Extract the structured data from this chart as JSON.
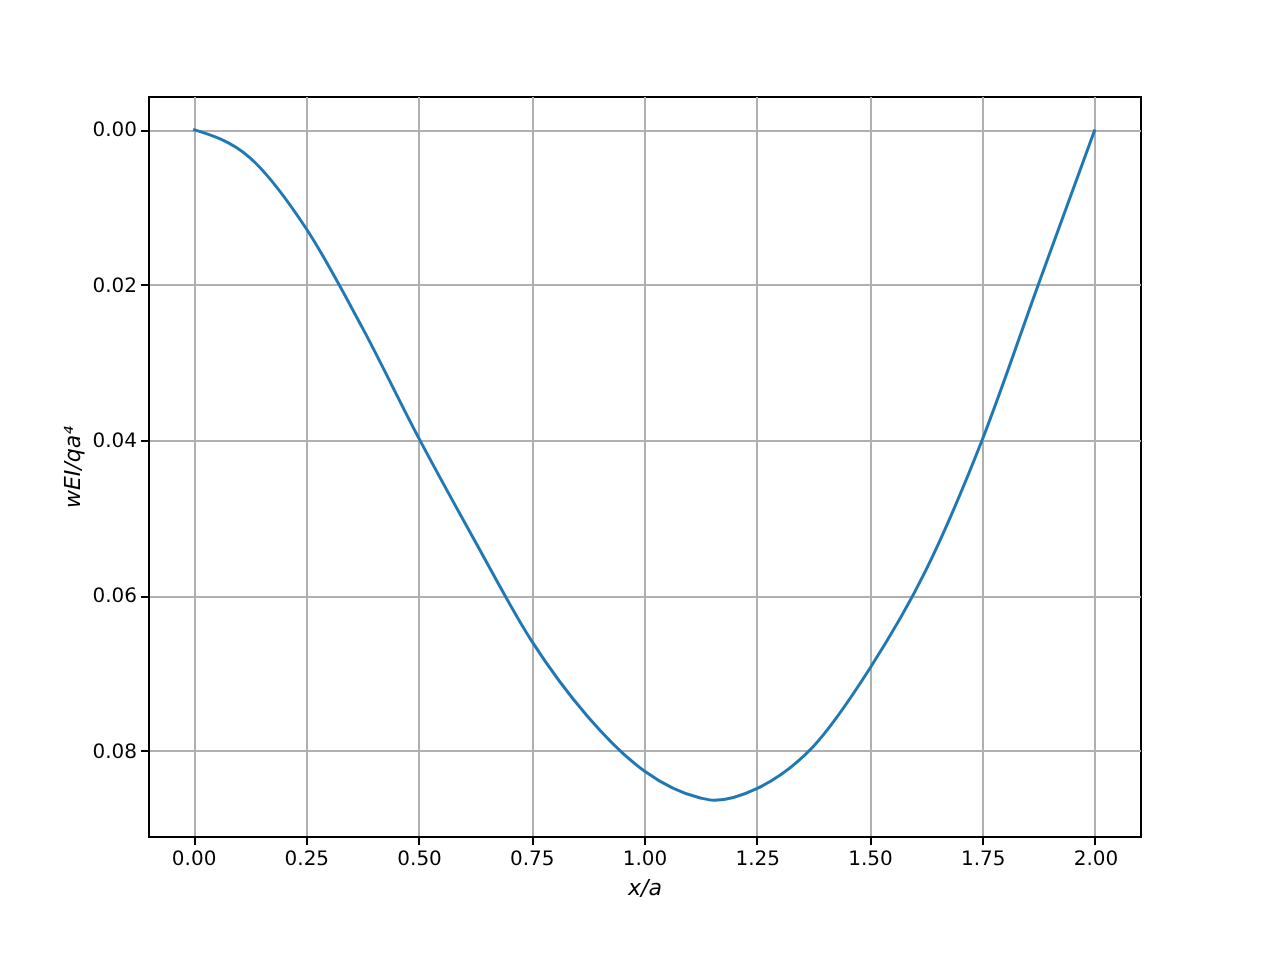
{
  "chart_data": {
    "type": "line",
    "xlabel": "x/a",
    "ylabel": "wEI/qa⁴",
    "x": [
      0,
      0.125,
      0.25,
      0.375,
      0.5,
      0.625,
      0.75,
      0.875,
      1.0,
      1.125,
      1.156,
      1.25,
      1.375,
      1.5,
      1.625,
      1.75,
      1.875,
      2.0
    ],
    "series": [
      {
        "color": "#1f77b4",
        "values": [
          0,
          0.0036,
          0.0127,
          0.0255,
          0.0397,
          0.053,
          0.0658,
          0.0756,
          0.0826,
          0.0861,
          0.0864,
          0.0849,
          0.0795,
          0.0695,
          0.0568,
          0.04,
          0.0199,
          0
        ]
      }
    ],
    "xlim": [
      -0.1,
      2.1
    ],
    "ylim": [
      0.091,
      -0.0043
    ],
    "xticks": [
      {
        "value": 0,
        "label": "0.00"
      },
      {
        "value": 0.25,
        "label": "0.25"
      },
      {
        "value": 0.5,
        "label": "0.50"
      },
      {
        "value": 0.75,
        "label": "0.75"
      },
      {
        "value": 1.0,
        "label": "1.00"
      },
      {
        "value": 1.25,
        "label": "1.25"
      },
      {
        "value": 1.5,
        "label": "1.50"
      },
      {
        "value": 1.75,
        "label": "1.75"
      },
      {
        "value": 2.0,
        "label": "2.00"
      }
    ],
    "yticks": [
      {
        "value": 0,
        "label": "0.00"
      },
      {
        "value": 0.02,
        "label": "0.02"
      },
      {
        "value": 0.04,
        "label": "0.04"
      },
      {
        "value": 0.06,
        "label": "0.06"
      },
      {
        "value": 0.08,
        "label": "0.08"
      }
    ],
    "grid": true,
    "marker": "none",
    "line_style": "solid"
  }
}
